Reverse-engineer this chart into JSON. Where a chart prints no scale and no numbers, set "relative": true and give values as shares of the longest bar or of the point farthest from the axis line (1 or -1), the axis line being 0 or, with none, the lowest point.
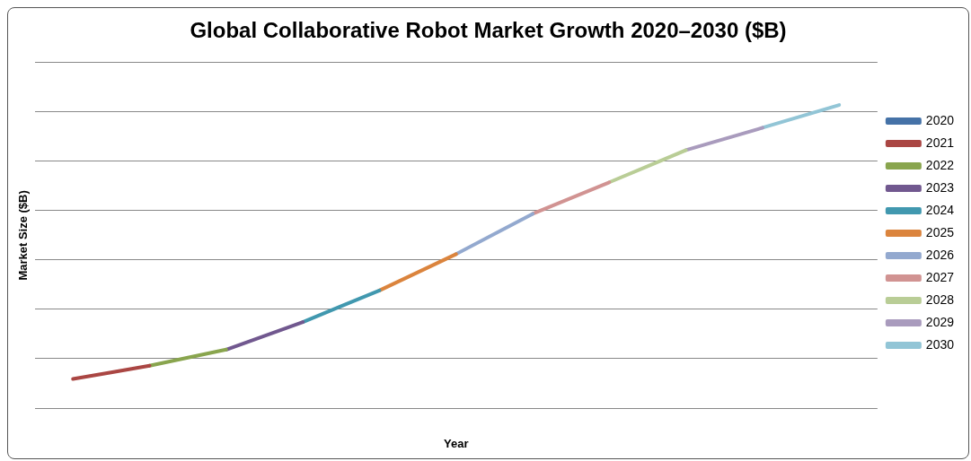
{
  "chart_data": {
    "type": "line",
    "title": "Global Collaborative Robot Market Growth 2020–2030 ($B)",
    "xlabel": "Year",
    "ylabel": "Market Size ($B)",
    "relative": true,
    "grid": "y",
    "legend": "right",
    "marker": "none",
    "line_style": "solid",
    "categories": [
      null,
      null,
      null,
      null,
      null,
      null,
      null,
      null,
      null,
      null,
      null
    ],
    "series": [
      {
        "name": "2020",
        "color": "#4572a7",
        "values": [
          null,
          null,
          null,
          null,
          null,
          null,
          null,
          null,
          null,
          null,
          null
        ]
      },
      {
        "name": "2021",
        "color": "#aa4643",
        "values": [
          0.096,
          0.14,
          null,
          null,
          null,
          null,
          null,
          null,
          null,
          null,
          null
        ]
      },
      {
        "name": "2022",
        "color": "#89a54e",
        "values": [
          null,
          0.14,
          0.193,
          null,
          null,
          null,
          null,
          null,
          null,
          null,
          null
        ]
      },
      {
        "name": "2023",
        "color": "#71588f",
        "values": [
          null,
          null,
          0.193,
          0.284,
          null,
          null,
          null,
          null,
          null,
          null,
          null
        ]
      },
      {
        "name": "2024",
        "color": "#4198af",
        "values": [
          null,
          null,
          null,
          0.284,
          0.388,
          null,
          null,
          null,
          null,
          null,
          null
        ]
      },
      {
        "name": "2025",
        "color": "#db843d",
        "values": [
          null,
          null,
          null,
          null,
          0.388,
          0.508,
          null,
          null,
          null,
          null,
          null
        ]
      },
      {
        "name": "2026",
        "color": "#93a9cf",
        "values": [
          null,
          null,
          null,
          null,
          null,
          0.508,
          0.641,
          null,
          null,
          null,
          null
        ]
      },
      {
        "name": "2027",
        "color": "#d19392",
        "values": [
          null,
          null,
          null,
          null,
          null,
          null,
          0.641,
          0.745,
          null,
          null,
          null
        ]
      },
      {
        "name": "2028",
        "color": "#b9cd96",
        "values": [
          null,
          null,
          null,
          null,
          null,
          null,
          null,
          0.745,
          0.851,
          null,
          null
        ]
      },
      {
        "name": "2029",
        "color": "#a99bbd",
        "values": [
          null,
          null,
          null,
          null,
          null,
          null,
          null,
          null,
          0.851,
          0.925,
          null
        ]
      },
      {
        "name": "2030",
        "color": "#92c5d6",
        "values": [
          null,
          null,
          null,
          null,
          null,
          null,
          null,
          null,
          null,
          0.925,
          1
        ]
      }
    ]
  }
}
